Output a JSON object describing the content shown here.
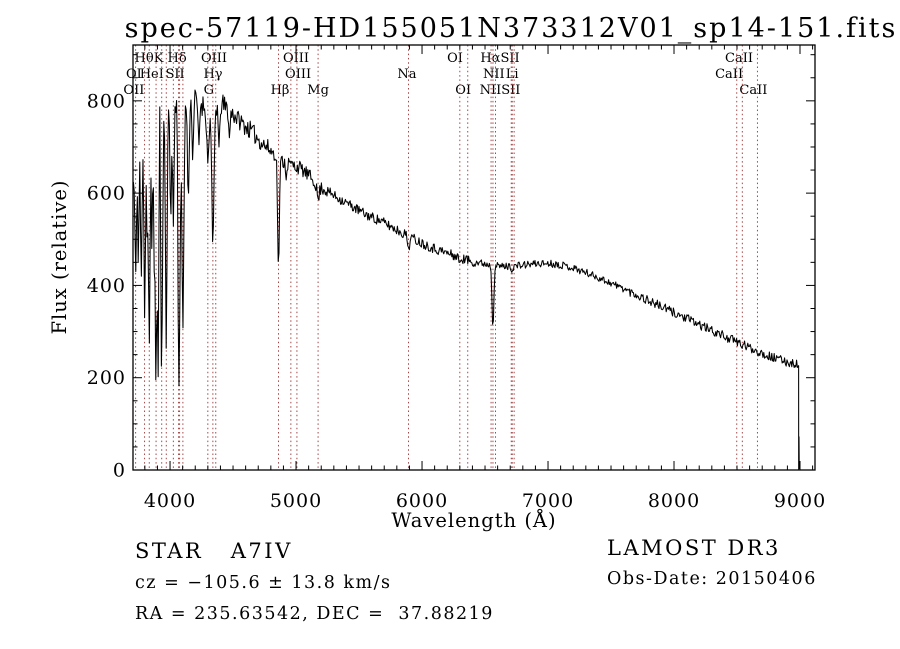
{
  "title": "spec-57119-HD155051N373312V01_sp14-151.fits",
  "annotations": {
    "class_label": "STAR   A7IV",
    "cz": "cz = −105.6 ± 13.8 km/s",
    "ra_dec": "RA = 235.63542, DEC =  37.88219",
    "survey": "LAMOST DR3",
    "obs_date": "Obs-Date: 20150406"
  },
  "chart_data": {
    "type": "line",
    "title": "spec-57119-HD155051N373312V01_sp14-151.fits",
    "xlabel": "Wavelength (Å)",
    "ylabel": "Flux (relative)",
    "xlim": [
      3706,
      9119
    ],
    "ylim": [
      0,
      921
    ],
    "xticks": [
      4000,
      5000,
      6000,
      7000,
      8000,
      9000
    ],
    "yticks": [
      0,
      200,
      400,
      600,
      800
    ],
    "x_minor_tick_step": 100,
    "y_minor_tick_step": 50,
    "grid": false,
    "legend": "none",
    "curve_color": "#000000",
    "marker_color": "#993333",
    "spectrum_start": 3709,
    "spectrum_end": 8985,
    "end_drop": {
      "wavelength": 8989,
      "spike_flux": 72
    },
    "noise_seed": 11,
    "noise_bands": [
      [
        3706,
        3800,
        88
      ],
      [
        3800,
        3950,
        55
      ],
      [
        3950,
        4200,
        26
      ],
      [
        4200,
        4480,
        24
      ],
      [
        4480,
        4780,
        20
      ],
      [
        4780,
        5250,
        15
      ],
      [
        5250,
        6450,
        11
      ],
      [
        6450,
        7650,
        8
      ],
      [
        7650,
        9000,
        10
      ]
    ],
    "continuum": [
      [
        3706,
        620
      ],
      [
        3740,
        670
      ],
      [
        3780,
        730
      ],
      [
        3830,
        775
      ],
      [
        3880,
        795
      ],
      [
        3940,
        800
      ],
      [
        4000,
        805
      ],
      [
        4060,
        795
      ],
      [
        4120,
        798
      ],
      [
        4180,
        805
      ],
      [
        4240,
        795
      ],
      [
        4300,
        782
      ],
      [
        4360,
        790
      ],
      [
        4420,
        790
      ],
      [
        4480,
        778
      ],
      [
        4540,
        760
      ],
      [
        4600,
        745
      ],
      [
        4660,
        730
      ],
      [
        4720,
        712
      ],
      [
        4780,
        696
      ],
      [
        4840,
        683
      ],
      [
        4900,
        668
      ],
      [
        4960,
        662
      ],
      [
        5030,
        655
      ],
      [
        5100,
        638
      ],
      [
        5190,
        615
      ],
      [
        5300,
        595
      ],
      [
        5430,
        574
      ],
      [
        5550,
        554
      ],
      [
        5670,
        540
      ],
      [
        5790,
        522
      ],
      [
        5900,
        506
      ],
      [
        6000,
        492
      ],
      [
        6100,
        480
      ],
      [
        6200,
        470
      ],
      [
        6300,
        460
      ],
      [
        6400,
        452
      ],
      [
        6500,
        447
      ],
      [
        6600,
        442
      ],
      [
        6700,
        441
      ],
      [
        6800,
        444
      ],
      [
        6900,
        447
      ],
      [
        7000,
        448
      ],
      [
        7100,
        445
      ],
      [
        7200,
        438
      ],
      [
        7300,
        428
      ],
      [
        7400,
        417
      ],
      [
        7500,
        405
      ],
      [
        7600,
        393
      ],
      [
        7700,
        380
      ],
      [
        7800,
        367
      ],
      [
        7900,
        354
      ],
      [
        8000,
        341
      ],
      [
        8100,
        328
      ],
      [
        8200,
        315
      ],
      [
        8300,
        302
      ],
      [
        8400,
        290
      ],
      [
        8500,
        277
      ],
      [
        8600,
        265
      ],
      [
        8700,
        253
      ],
      [
        8800,
        242
      ],
      [
        8900,
        234
      ],
      [
        8985,
        229
      ]
    ],
    "absorption_lines": [
      [
        3727,
        430,
        6
      ],
      [
        3750,
        500,
        5
      ],
      [
        3771,
        420,
        5
      ],
      [
        3798,
        330,
        6
      ],
      [
        3819,
        520,
        5
      ],
      [
        3835,
        275,
        6
      ],
      [
        3856,
        480,
        5
      ],
      [
        3875,
        430,
        5
      ],
      [
        3889,
        200,
        6
      ],
      [
        3905,
        255,
        5
      ],
      [
        3934,
        225,
        7
      ],
      [
        3970,
        280,
        7
      ],
      [
        4005,
        555,
        5
      ],
      [
        4026,
        540,
        6
      ],
      [
        4068,
        225,
        5
      ],
      [
        4078,
        420,
        5
      ],
      [
        4102,
        330,
        8
      ],
      [
        4144,
        600,
        6
      ],
      [
        4180,
        690,
        6
      ],
      [
        4227,
        705,
        5
      ],
      [
        4300,
        665,
        8
      ],
      [
        4340,
        495,
        9
      ],
      [
        4387,
        700,
        5
      ],
      [
        4472,
        720,
        5
      ],
      [
        4861,
        452,
        7
      ],
      [
        4922,
        640,
        5
      ],
      [
        5175,
        588,
        10
      ],
      [
        5893,
        482,
        8
      ],
      [
        6300,
        450,
        5
      ],
      [
        6563,
        316,
        7
      ],
      [
        6716,
        432,
        5
      ],
      [
        8542,
        272,
        8
      ],
      [
        8662,
        258,
        8
      ]
    ],
    "line_markers": [
      3727,
      3798,
      3835,
      3889,
      3934,
      3970,
      4026,
      4068,
      4076,
      4102,
      4300,
      4340,
      4363,
      4861,
      4959,
      5007,
      5175,
      5893,
      6300,
      6363,
      6548,
      6563,
      6583,
      6708,
      6716,
      6731,
      8498,
      8542,
      8662
    ],
    "line_labels": [
      {
        "row": 1,
        "text": "HθK",
        "wavelength": 3833
      },
      {
        "row": 1,
        "text": "Hδ",
        "wavelength": 4056
      },
      {
        "row": 1,
        "text": "OIII",
        "wavelength": 4349
      },
      {
        "row": 1,
        "text": "OIII",
        "wavelength": 5000
      },
      {
        "row": 1,
        "text": "OI",
        "wavelength": 6262
      },
      {
        "row": 1,
        "text": "HαSII",
        "wavelength": 6619
      },
      {
        "row": 1,
        "text": "CaII",
        "wavelength": 8516
      },
      {
        "row": 2,
        "text": "OI",
        "wavelength": 3713
      },
      {
        "row": 2,
        "text": "HeI",
        "wavelength": 3855
      },
      {
        "row": 2,
        "text": "SII",
        "wavelength": 4040
      },
      {
        "row": 2,
        "text": "Hγ",
        "wavelength": 4341
      },
      {
        "row": 2,
        "text": "OIII",
        "wavelength": 5016
      },
      {
        "row": 2,
        "text": "Na",
        "wavelength": 5881
      },
      {
        "row": 2,
        "text": "NII",
        "wavelength": 6570
      },
      {
        "row": 2,
        "text": "Li",
        "wavelength": 6716
      },
      {
        "row": 2,
        "text": "CaII",
        "wavelength": 8437
      },
      {
        "row": 3,
        "text": "OII",
        "wavelength": 3713
      },
      {
        "row": 3,
        "text": "G",
        "wavelength": 4308
      },
      {
        "row": 3,
        "text": "Hβ",
        "wavelength": 4873
      },
      {
        "row": 3,
        "text": "Mg",
        "wavelength": 5175
      },
      {
        "row": 3,
        "text": "OI",
        "wavelength": 6327
      },
      {
        "row": 3,
        "text": "NIISII",
        "wavelength": 6619
      },
      {
        "row": 3,
        "text": "CaII",
        "wavelength": 8630
      }
    ]
  }
}
